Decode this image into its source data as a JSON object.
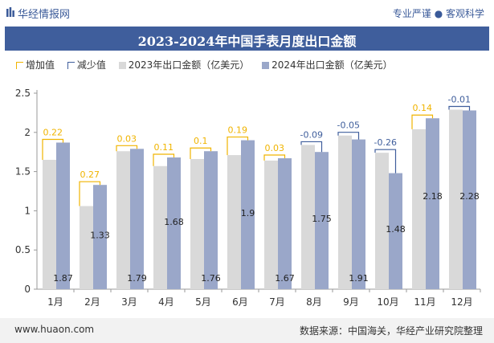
{
  "header": {
    "brand": "华经情报网",
    "slogan": "专业严谨 ● 客观科学"
  },
  "footer": {
    "site": "www.huaon.com",
    "source": "数据来源：中国海关，华经产业研究院整理"
  },
  "chart_data": {
    "type": "bar",
    "title": "2023-2024年中国手表月度出口金额",
    "categories": [
      "1月",
      "2月",
      "3月",
      "4月",
      "5月",
      "6月",
      "7月",
      "8月",
      "9月",
      "10月",
      "11月",
      "12月"
    ],
    "series": [
      {
        "name": "2023年出口金额（亿美元）",
        "values": [
          1.65,
          1.06,
          1.76,
          1.57,
          1.66,
          1.71,
          1.64,
          1.84,
          1.96,
          1.74,
          2.04,
          2.29
        ]
      },
      {
        "name": "2024年出口金额（亿美元）",
        "values": [
          1.87,
          1.33,
          1.79,
          1.68,
          1.76,
          1.9,
          1.67,
          1.75,
          1.91,
          1.48,
          2.18,
          2.28
        ]
      }
    ],
    "change": {
      "values": [
        0.22,
        0.27,
        0.03,
        0.11,
        0.1,
        0.19,
        0.03,
        -0.09,
        -0.05,
        -0.26,
        0.14,
        -0.01
      ],
      "labels": [
        "0.22",
        "0.27",
        "0.03",
        "0.11",
        "0.1",
        "0.19",
        "0.03",
        "-0.09",
        "-0.05",
        "-0.26",
        "0.14",
        "-0.01"
      ],
      "increase_name": "增加值",
      "decrease_name": "减少值"
    },
    "data_labels_2024": [
      "1.87",
      "1.33",
      "1.79",
      "1.68",
      "1.76",
      "1.9",
      "1.67",
      "1.75",
      "1.91",
      "1.48",
      "2.18",
      "2.28"
    ],
    "ylim": [
      0,
      2.5
    ],
    "yticks": [
      "0",
      "0.5",
      "1",
      "1.5",
      "2",
      "2.5"
    ],
    "legend_position": "top-left",
    "grid": false,
    "colors": {
      "bar_2023": "#d9d9d9",
      "bar_2024": "#9aa7c9",
      "increase": "#f0b400",
      "decrease": "#3f5e9c",
      "title_bg": "#3f5e9c"
    }
  }
}
